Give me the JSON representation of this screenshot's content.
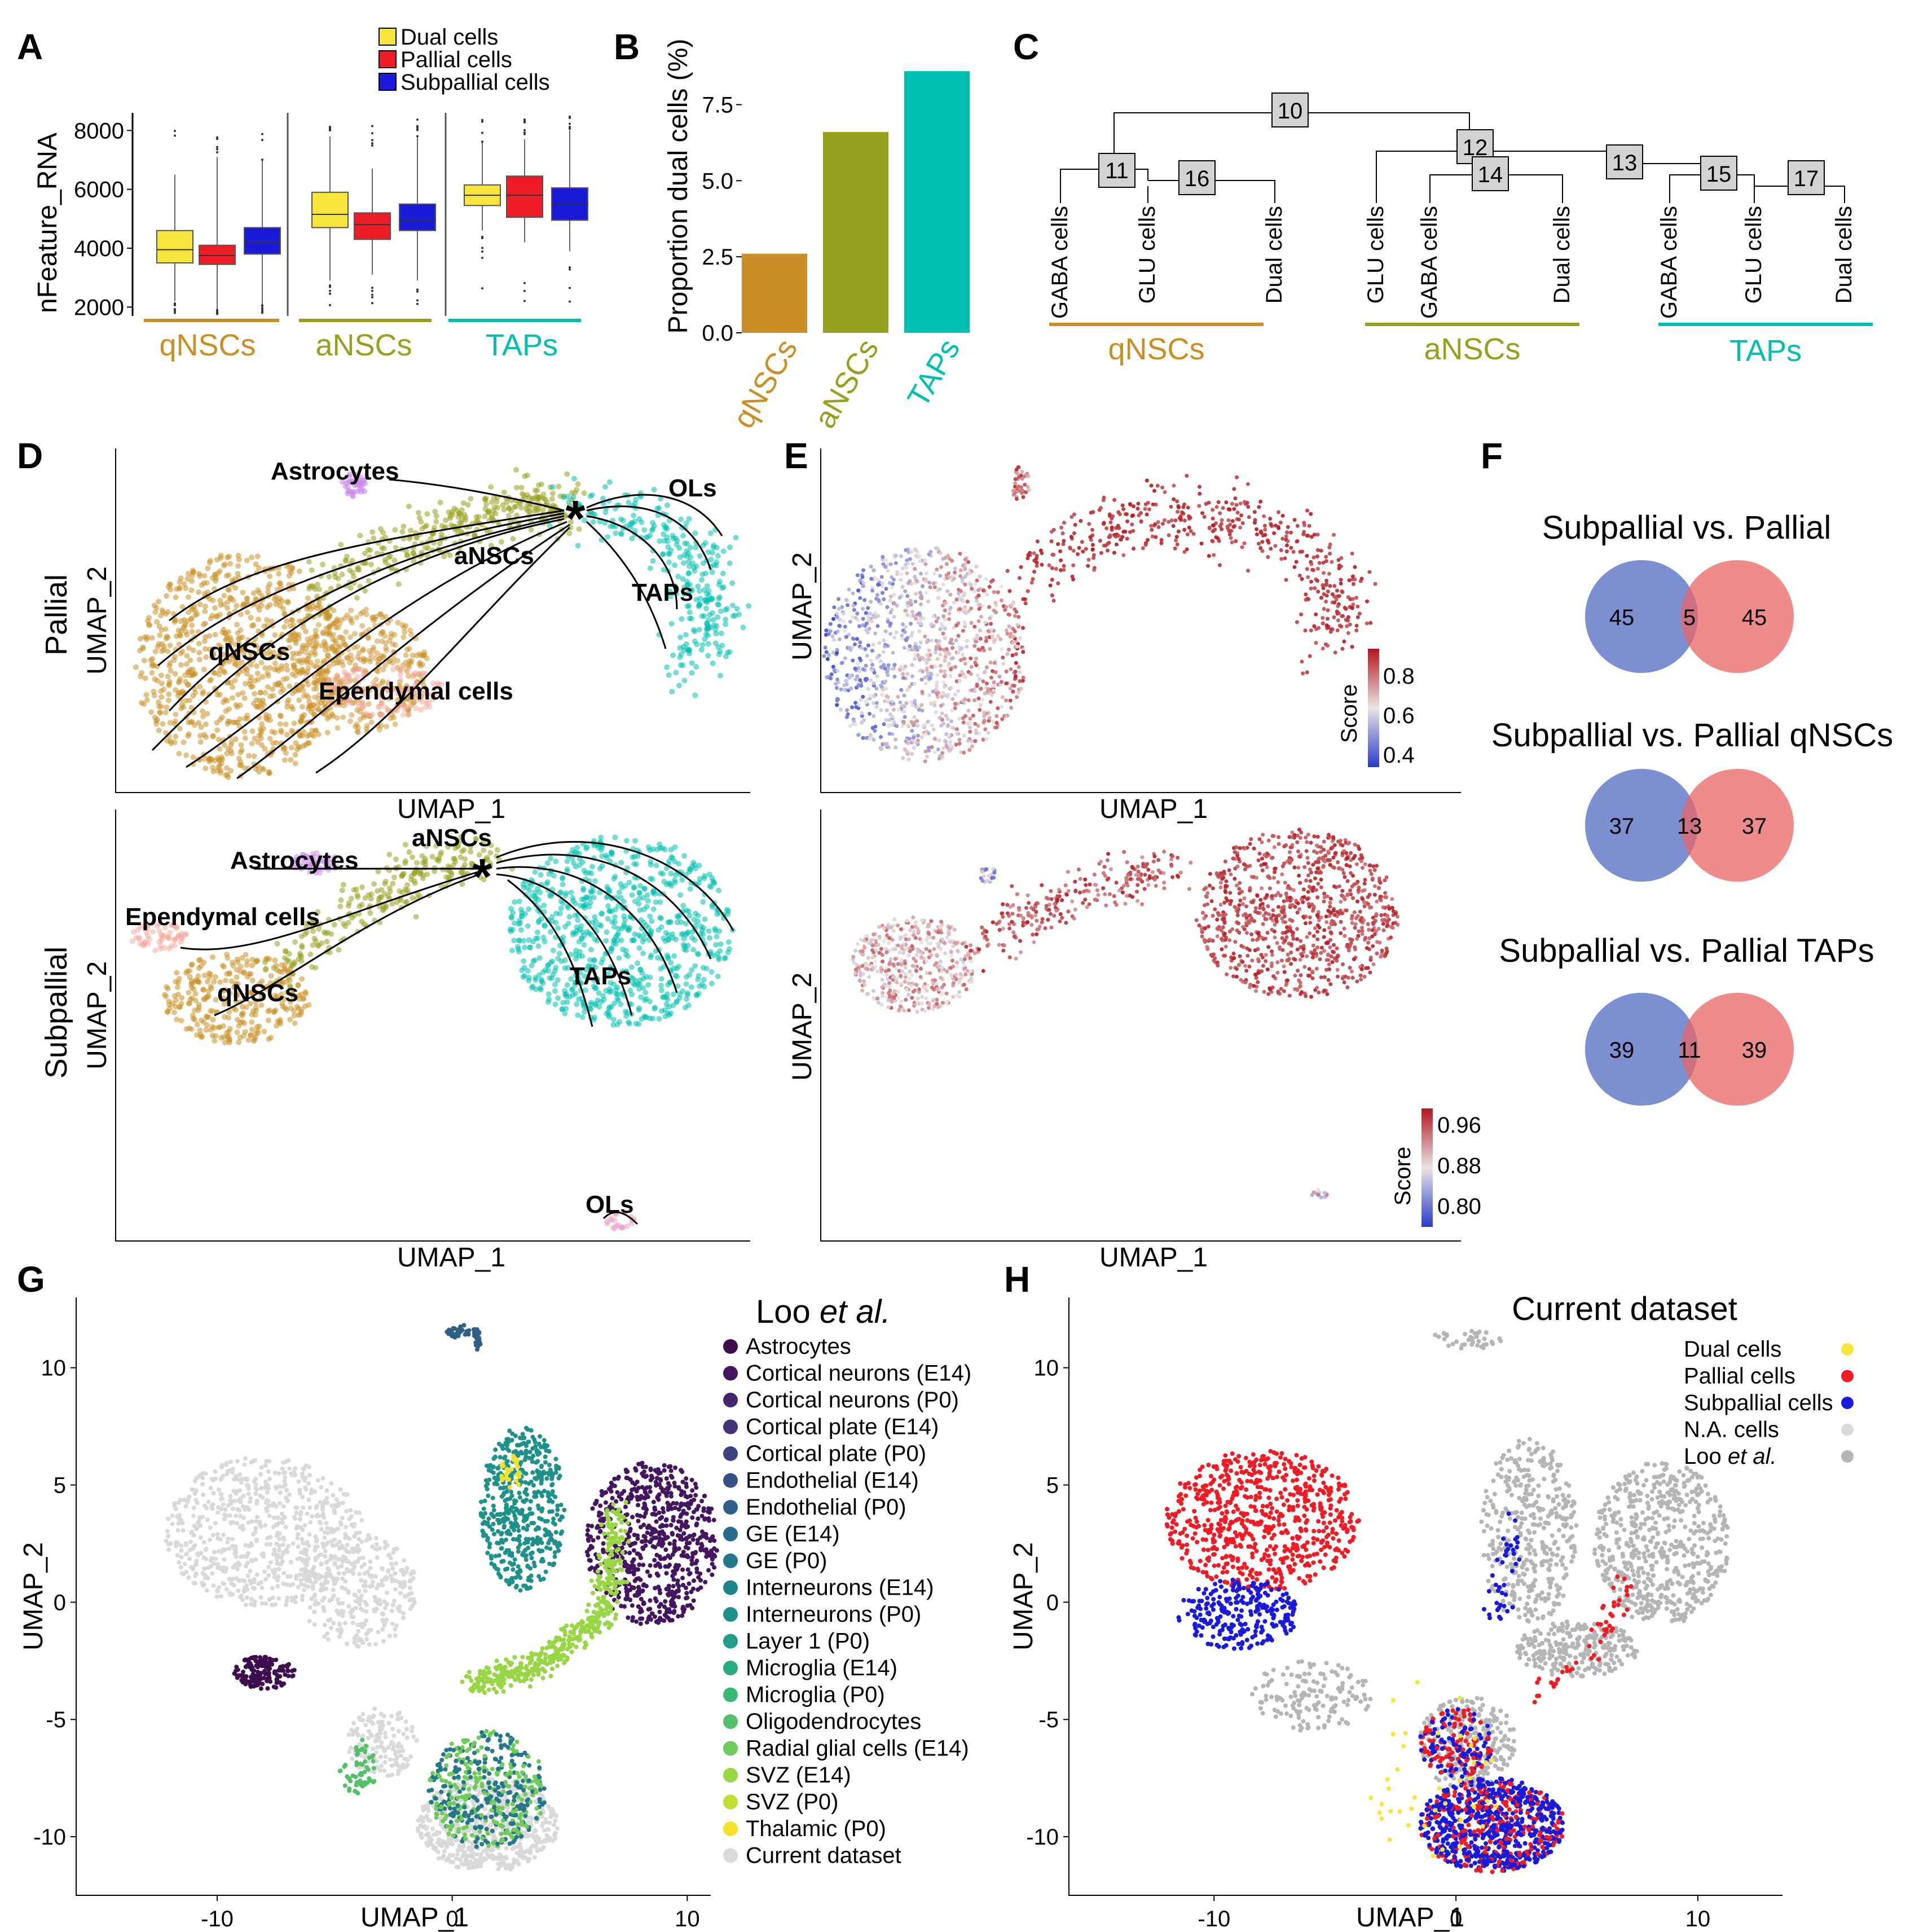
{
  "colors": {
    "qNSCs": "#c98f25",
    "aNSCs": "#95a11e",
    "TAPs": "#00bfae",
    "dual": "#f7e53b",
    "pallial": "#ee1c24",
    "subpallial": "#1a1adb",
    "na_cells": "#d9d9d9",
    "loo": "#b5b5b5",
    "venn_blue": "#5a73c6",
    "venn_red": "#e86565"
  },
  "panels": {
    "A": {
      "letter": "A",
      "ylabel": "nFeature_RNA",
      "legend": [
        "Dual cells",
        "Pallial cells",
        "Subpallial cells"
      ],
      "groups": [
        "qNSCs",
        "aNSCs",
        "TAPs"
      ]
    },
    "B": {
      "letter": "B",
      "ylabel": "Proportion dual cells (%)"
    },
    "C": {
      "letter": "C",
      "groups": [
        "qNSCs",
        "aNSCs",
        "TAPs"
      ]
    },
    "D": {
      "letter": "D",
      "row_labels": [
        "Pallial",
        "Subpallial"
      ],
      "xlabel": "UMAP_1",
      "ylabel": "UMAP_2",
      "pallial_labels": [
        "Astrocytes",
        "aNSCs",
        "OLs",
        "TAPs",
        "qNSCs",
        "Ependymal cells"
      ],
      "subpallial_labels": [
        "Astrocytes",
        "aNSCs",
        "Ependymal cells",
        "qNSCs",
        "TAPs",
        "OLs"
      ]
    },
    "E": {
      "letter": "E",
      "xlabel": "UMAP_1",
      "ylabel": "UMAP_2",
      "score_label": "Score",
      "top_ticks": [
        "0.8",
        "0.6",
        "0.4"
      ],
      "bottom_ticks": [
        "0.96",
        "0.88",
        "0.80"
      ]
    },
    "F": {
      "letter": "F",
      "venns": [
        {
          "title": "Subpallial vs. Pallial",
          "left": "45",
          "mid": "5",
          "right": "45"
        },
        {
          "title": "Subpallial vs. Pallial qNSCs",
          "left": "37",
          "mid": "13",
          "right": "37"
        },
        {
          "title": "Subpallial vs. Pallial TAPs",
          "left": "39",
          "mid": "11",
          "right": "39"
        }
      ]
    },
    "G": {
      "letter": "G",
      "title_plain": "Loo ",
      "title_italic": "et al.",
      "xlabel": "UMAP_1",
      "ylabel": "UMAP_2",
      "xticks": [
        "-10",
        "0",
        "10"
      ],
      "yticks": [
        "10",
        "5",
        "0",
        "-5",
        "-10"
      ],
      "legend": [
        {
          "label": "Astrocytes",
          "color": "#3d0d4e"
        },
        {
          "label": "Cortical neurons (E14)",
          "color": "#441660"
        },
        {
          "label": "Cortical neurons (P0)",
          "color": "#45246e"
        },
        {
          "label": "Cortical plate (E14)",
          "color": "#443279"
        },
        {
          "label": "Cortical plate (P0)",
          "color": "#3e427f"
        },
        {
          "label": "Endothelial (E14)",
          "color": "#365083"
        },
        {
          "label": "Endothelial (P0)",
          "color": "#2f5e87"
        },
        {
          "label": "GE (E14)",
          "color": "#296b88"
        },
        {
          "label": "GE (P0)",
          "color": "#24788a"
        },
        {
          "label": "Interneurons (E14)",
          "color": "#1f858b"
        },
        {
          "label": "Interneurons (P0)",
          "color": "#1e918a"
        },
        {
          "label": "Layer 1 (P0)",
          "color": "#209e87"
        },
        {
          "label": "Microglia (E14)",
          "color": "#2aab80"
        },
        {
          "label": "Microglia (P0)",
          "color": "#3ab676"
        },
        {
          "label": "Oligodendrocytes",
          "color": "#52c16a"
        },
        {
          "label": "Radial glial cells (E14)",
          "color": "#70cc5a"
        },
        {
          "label": "SVZ (E14)",
          "color": "#98d646"
        },
        {
          "label": "SVZ (P0)",
          "color": "#c2de32"
        },
        {
          "label": "Thalamic (P0)",
          "color": "#f2e22a"
        },
        {
          "label": "Current dataset",
          "color": "#d9d9d9"
        }
      ]
    },
    "H": {
      "letter": "H",
      "title": "Current dataset",
      "xlabel": "UMAP_1",
      "ylabel": "UMAP_2",
      "xticks": [
        "-10",
        "0",
        "10"
      ],
      "yticks": [
        "10",
        "5",
        "0",
        "-5",
        "-10"
      ],
      "legend": [
        {
          "label": "Dual cells",
          "color": "#f7e53b"
        },
        {
          "label": "Pallial cells",
          "color": "#ee1c24"
        },
        {
          "label": "Subpallial cells",
          "color": "#1a1adb"
        },
        {
          "label": "N.A. cells",
          "color": "#d9d9d9"
        },
        {
          "label": "Loo et al.",
          "color": "#b5b5b5"
        }
      ]
    }
  },
  "chart_data": [
    {
      "panel": "A",
      "type": "box",
      "categories": [
        "qNSCs",
        "aNSCs",
        "TAPs"
      ],
      "ylabel": "nFeature_RNA",
      "yticks": [
        2000,
        4000,
        6000,
        8000
      ],
      "ylim": [
        1700,
        8600
      ],
      "series": [
        {
          "name": "Dual cells",
          "boxes": [
            {
              "min": 2200,
              "q1": 3500,
              "median": 3950,
              "q3": 4600,
              "max": 6500
            },
            {
              "min": 2900,
              "q1": 4700,
              "median": 5150,
              "q3": 5900,
              "max": 7800
            },
            {
              "min": 4600,
              "q1": 5450,
              "median": 5800,
              "q3": 6150,
              "max": 7600
            }
          ]
        },
        {
          "name": "Pallial cells",
          "boxes": [
            {
              "min": 1900,
              "q1": 3450,
              "median": 3750,
              "q3": 4100,
              "max": 7100
            },
            {
              "min": 3100,
              "q1": 4300,
              "median": 4800,
              "q3": 5200,
              "max": 6700
            },
            {
              "min": 4200,
              "q1": 5050,
              "median": 5800,
              "q3": 6450,
              "max": 7700
            }
          ]
        },
        {
          "name": "Subpallial cells",
          "boxes": [
            {
              "min": 2100,
              "q1": 3800,
              "median": 4200,
              "q3": 4700,
              "max": 7000
            },
            {
              "min": 2900,
              "q1": 4600,
              "median": 4950,
              "q3": 5500,
              "max": 7800
            },
            {
              "min": 3900,
              "q1": 4950,
              "median": 5500,
              "q3": 6050,
              "max": 8000
            }
          ]
        }
      ]
    },
    {
      "panel": "B",
      "type": "bar",
      "categories": [
        "qNSCs",
        "aNSCs",
        "TAPs"
      ],
      "values": [
        2.6,
        6.6,
        8.6
      ],
      "ylabel": "Proportion dual cells (%)",
      "yticks": [
        0.0,
        2.5,
        5.0,
        7.5
      ],
      "ylim": [
        0,
        8.9
      ]
    },
    {
      "panel": "C",
      "type": "table",
      "description_nodes": [
        "10",
        "11",
        "16",
        "12",
        "14",
        "13",
        "15",
        "17"
      ],
      "leaves": [
        [
          "GABA cells",
          "GLU cells",
          "Dual cells"
        ],
        [
          "GLU cells",
          "GABA cells",
          "Dual cells"
        ],
        [
          "GABA cells",
          "GLU cells",
          "Dual cells"
        ]
      ]
    },
    {
      "panel": "G",
      "type": "scatter",
      "xlabel": "UMAP_1",
      "ylabel": "UMAP_2",
      "xlim": [
        -16,
        11
      ],
      "ylim": [
        -12.5,
        13
      ]
    },
    {
      "panel": "H",
      "type": "scatter",
      "xlabel": "UMAP_1",
      "ylabel": "UMAP_2",
      "xlim": [
        -16,
        13.5
      ],
      "ylim": [
        -12.5,
        13
      ]
    }
  ]
}
